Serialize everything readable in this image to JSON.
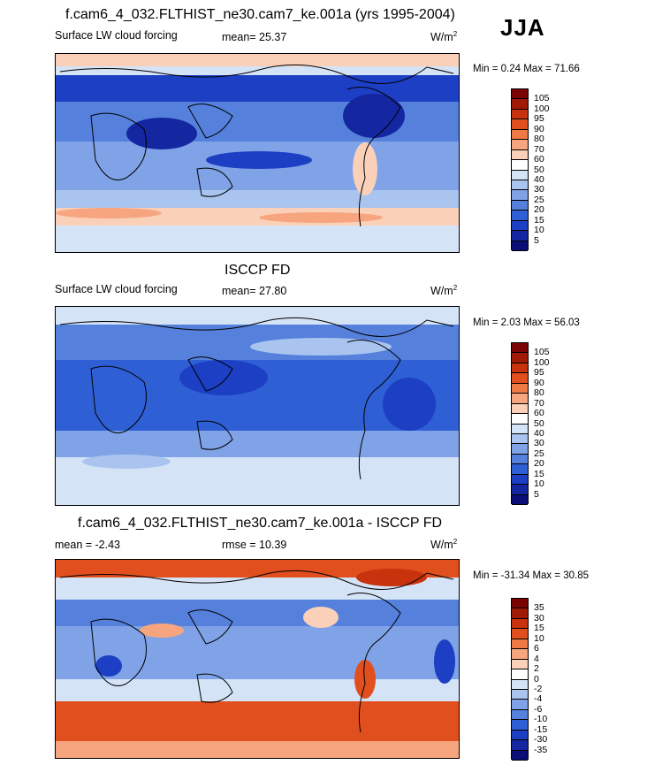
{
  "season": "JJA",
  "panels": [
    {
      "title": "f.cam6_4_032.FLTHIST_ne30.cam7_ke.001a (yrs 1995-2004)",
      "left_label": "Surface LW cloud forcing",
      "mid_label": "mean=  25.37",
      "units": "W/m",
      "units_sup": "2",
      "minmax": "Min =   0.24 Max =  71.66",
      "colorbar": {
        "levels": [
          "105",
          "100",
          "95",
          "90",
          "80",
          "70",
          "60",
          "50",
          "40",
          "30",
          "25",
          "20",
          "15",
          "10",
          "5"
        ],
        "colors": [
          "#7a0403",
          "#a11a05",
          "#c8320d",
          "#e04f1d",
          "#ef7a45",
          "#f6a57f",
          "#fbd0b9",
          "#ffffff",
          "#d5e3f7",
          "#a9c5ef",
          "#7fa3e6",
          "#5580dc",
          "#2f5fd5",
          "#1c3fc4",
          "#1426a0",
          "#0a0f78"
        ]
      }
    },
    {
      "title": "ISCCP FD",
      "left_label": "Surface LW cloud forcing",
      "mid_label": "mean=  27.80",
      "units": "W/m",
      "units_sup": "2",
      "minmax": "Min =   2.03 Max =  56.03",
      "colorbar": {
        "levels": [
          "105",
          "100",
          "95",
          "90",
          "80",
          "70",
          "60",
          "50",
          "40",
          "30",
          "25",
          "20",
          "15",
          "10",
          "5"
        ],
        "colors": [
          "#7a0403",
          "#a11a05",
          "#c8320d",
          "#e04f1d",
          "#ef7a45",
          "#f6a57f",
          "#fbd0b9",
          "#ffffff",
          "#d5e3f7",
          "#a9c5ef",
          "#7fa3e6",
          "#5580dc",
          "#2f5fd5",
          "#1c3fc4",
          "#1426a0",
          "#0a0f78"
        ]
      }
    },
    {
      "title": "f.cam6_4_032.FLTHIST_ne30.cam7_ke.001a - ISCCP FD",
      "left_label": "mean =  -2.43",
      "mid_label": "rmse =  10.39",
      "units": "W/m",
      "units_sup": "2",
      "minmax": "Min = -31.34 Max =  30.85",
      "colorbar": {
        "levels": [
          "35",
          "30",
          "15",
          "10",
          "6",
          "4",
          "2",
          "0",
          "-2",
          "-4",
          "-6",
          "-10",
          "-15",
          "-30",
          "-35"
        ],
        "colors": [
          "#7a0403",
          "#a11a05",
          "#c8320d",
          "#e04f1d",
          "#ef7a45",
          "#f6a57f",
          "#fbd0b9",
          "#ffffff",
          "#d5e3f7",
          "#a9c5ef",
          "#7fa3e6",
          "#5580dc",
          "#2f5fd5",
          "#1c3fc4",
          "#1426a0",
          "#0a0f78"
        ]
      }
    }
  ],
  "chart_data": [
    {
      "type": "heatmap",
      "title": "f.cam6_4_032.FLTHIST_ne30.cam7_ke.001a (yrs 1995-2004)",
      "subtitle": "Surface LW cloud forcing",
      "units": "W/m2",
      "mean": 25.37,
      "min": 0.24,
      "max": 71.66,
      "contour_levels": [
        5,
        10,
        15,
        20,
        25,
        30,
        40,
        50,
        60,
        70,
        80,
        90,
        95,
        100,
        105
      ]
    },
    {
      "type": "heatmap",
      "title": "ISCCP FD",
      "subtitle": "Surface LW cloud forcing",
      "units": "W/m2",
      "mean": 27.8,
      "min": 2.03,
      "max": 56.03,
      "contour_levels": [
        5,
        10,
        15,
        20,
        25,
        30,
        40,
        50,
        60,
        70,
        80,
        90,
        95,
        100,
        105
      ]
    },
    {
      "type": "heatmap",
      "title": "f.cam6_4_032.FLTHIST_ne30.cam7_ke.001a - ISCCP FD",
      "units": "W/m2",
      "mean": -2.43,
      "rmse": 10.39,
      "min": -31.34,
      "max": 30.85,
      "contour_levels": [
        -35,
        -30,
        -15,
        -10,
        -6,
        -4,
        -2,
        0,
        2,
        4,
        6,
        10,
        15,
        30,
        35
      ]
    }
  ]
}
